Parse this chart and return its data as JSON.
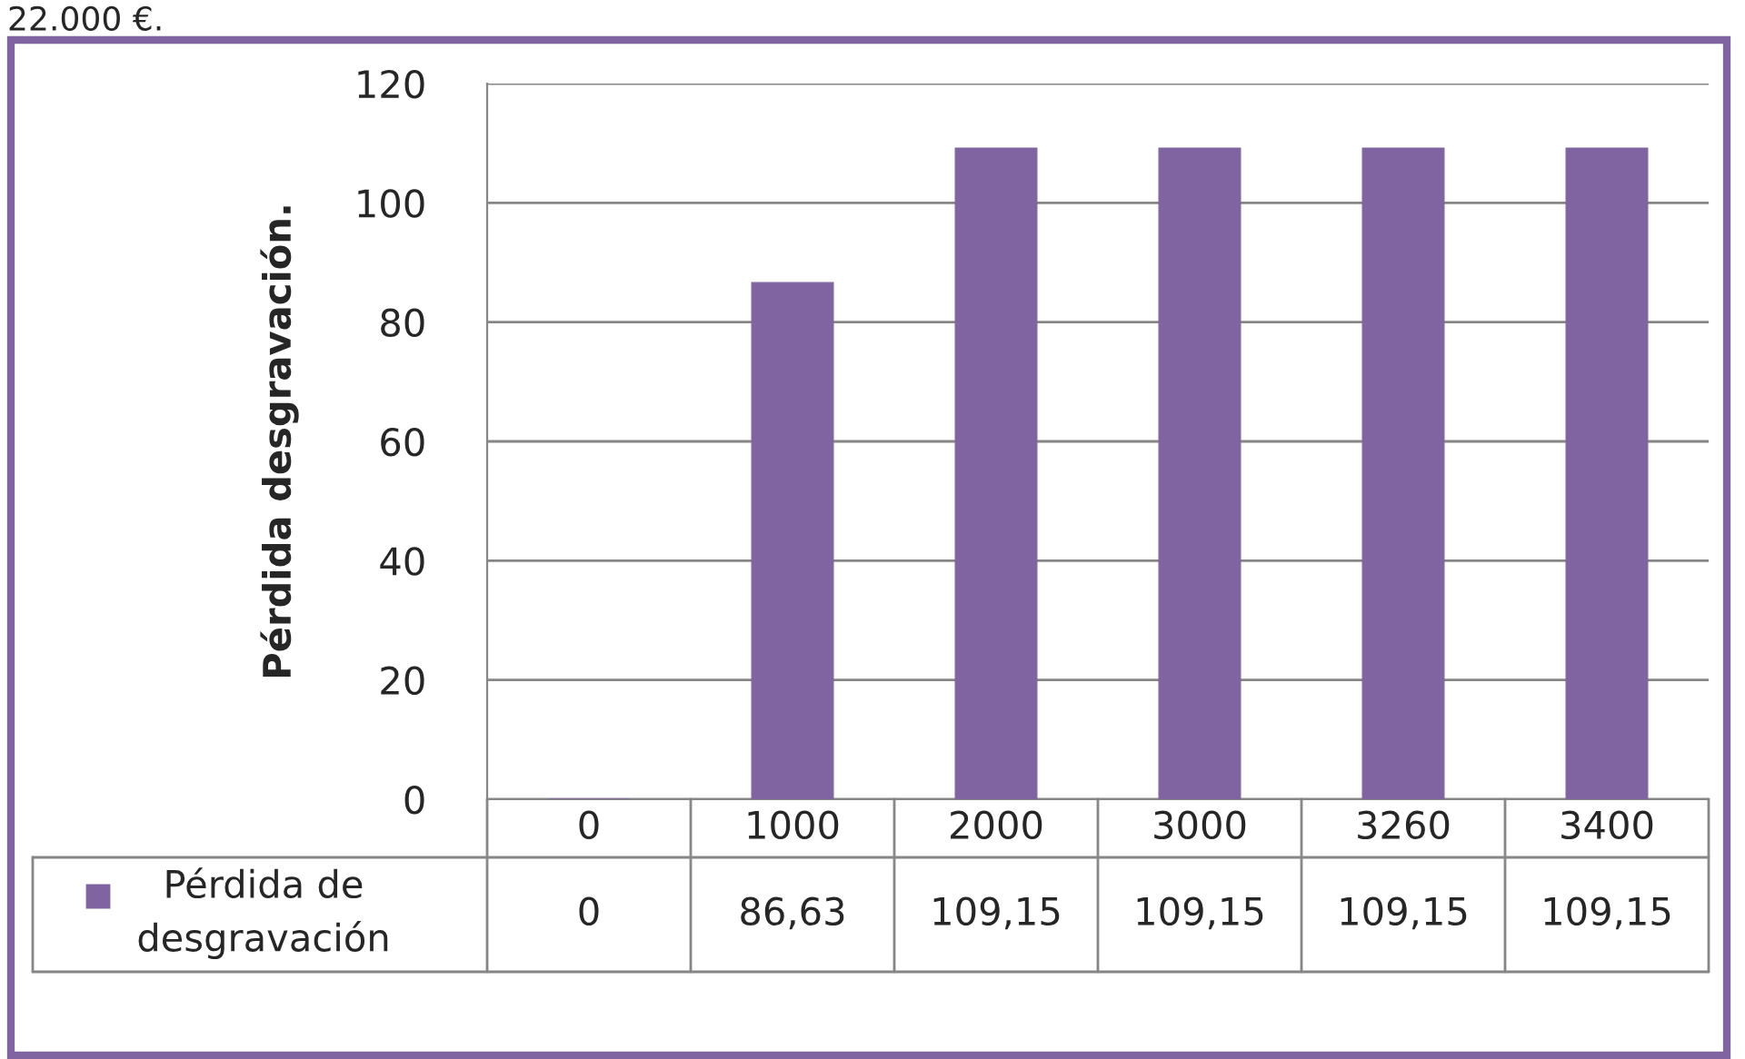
{
  "chart_data": {
    "type": "bar",
    "ylabel": "Pérdida desgravación.",
    "categories": [
      "0",
      "1000",
      "2000",
      "3000",
      "3260",
      "3400"
    ],
    "series": [
      {
        "name": "Pérdida de desgravación",
        "color": "#8064a2",
        "values": [
          0,
          86.63,
          109.15,
          109.15,
          109.15,
          109.15
        ],
        "value_labels": [
          "0",
          "86,63",
          "109,15",
          "109,15",
          "109,15",
          "109,15"
        ]
      }
    ],
    "ylim": [
      0,
      120
    ],
    "yticks": [
      0,
      20,
      40,
      60,
      80,
      100,
      120
    ],
    "grid": "y",
    "legend": "bottom",
    "annotations": [
      "22.000 €."
    ]
  }
}
